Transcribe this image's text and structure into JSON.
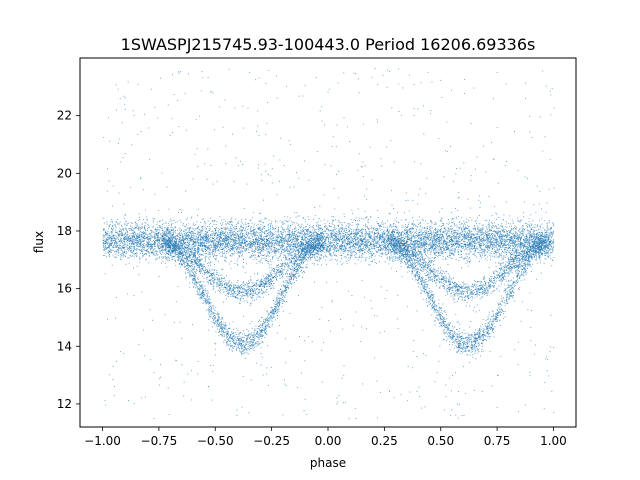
{
  "chart_data": {
    "type": "scatter",
    "title": "1SWASPJ215745.93-100443.0 Period 16206.69336s",
    "xlabel": "phase",
    "ylabel": "flux",
    "xlim": [
      -1.1,
      1.1
    ],
    "ylim": [
      11.2,
      24.0
    ],
    "xticks": [
      -1.0,
      -0.75,
      -0.5,
      -0.25,
      0.0,
      0.25,
      0.5,
      0.75,
      1.0
    ],
    "xtick_labels": [
      "−1.00",
      "−0.75",
      "−0.50",
      "−0.25",
      "0.00",
      "0.25",
      "0.50",
      "0.75",
      "1.00"
    ],
    "yticks": [
      12,
      14,
      16,
      18,
      20,
      22
    ],
    "ytick_labels": [
      "12",
      "14",
      "16",
      "18",
      "20",
      "22"
    ],
    "grid": false,
    "marker_color": "#1f77b4",
    "baseline_flux": 17.6,
    "phase_range": [
      -1.0,
      1.0
    ],
    "eclipse_minima": [
      {
        "phase": -0.38,
        "flux": 14.1
      },
      {
        "phase": 0.62,
        "flux": 14.1
      }
    ],
    "secondary_branch": [
      {
        "phase": -0.38,
        "flux": 15.9
      },
      {
        "phase": 0.62,
        "flux": 15.9
      }
    ]
  }
}
